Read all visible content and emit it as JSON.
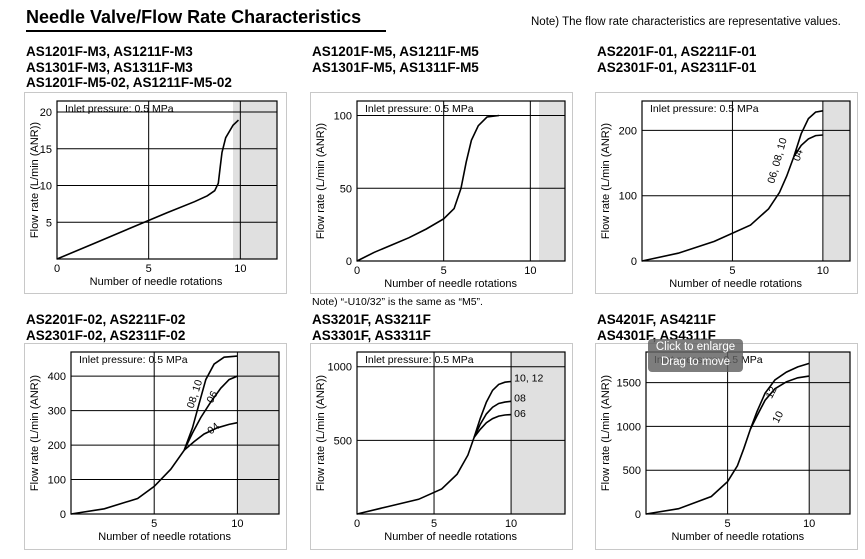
{
  "page": {
    "title": "Needle Valve/Flow Rate Characteristics",
    "note": "Note) The flow rate characteristics are representative values.",
    "middle_note": "Note) “-U10/32” is the same as “M5”."
  },
  "tooltip": {
    "line1": "Click to enlarge",
    "line2": "Drag to move"
  },
  "colors": {
    "grid_shade": "#e0e0e0",
    "plot_white": "#ffffff",
    "line": "#000000",
    "tooltip_bg": "#606060"
  },
  "chart_data": [
    {
      "type": "line",
      "heading": [
        "AS1201F-M3, AS1211F-M3",
        "AS1301F-M3, AS1311F-M3",
        "AS1201F-M5-02, AS1211F-M5-02"
      ],
      "inlet_pressure": "Inlet pressure: 0.5 MPa",
      "xlabel": "Number of needle rotations",
      "ylabel": "Flow rate (L/min (ANR))",
      "xlim": [
        0,
        12
      ],
      "ylim": [
        0,
        21.5
      ],
      "xticks": [
        0,
        5,
        10
      ],
      "yticks": [
        5,
        10,
        15,
        20
      ],
      "shade_from_x": 9.6,
      "series": [
        {
          "label": "",
          "points": [
            [
              0,
              0
            ],
            [
              2,
              2.1
            ],
            [
              4,
              4.2
            ],
            [
              6,
              6.3
            ],
            [
              7.5,
              7.8
            ],
            [
              8.2,
              8.6
            ],
            [
              8.6,
              9.3
            ],
            [
              8.8,
              10.3
            ],
            [
              8.9,
              12.5
            ],
            [
              9.0,
              14.5
            ],
            [
              9.2,
              16.5
            ],
            [
              9.6,
              18.2
            ],
            [
              9.9,
              18.9
            ]
          ]
        }
      ]
    },
    {
      "type": "line",
      "heading": [
        "AS1201F-M5, AS1211F-M5",
        "AS1301F-M5, AS1311F-M5"
      ],
      "inlet_pressure": "Inlet pressure: 0.5 MPa",
      "xlabel": "Number of needle rotations",
      "ylabel": "Flow rate (L/min (ANR))",
      "xlim": [
        0,
        12
      ],
      "ylim": [
        0,
        110
      ],
      "xticks": [
        0,
        5,
        10
      ],
      "yticks": [
        0,
        50,
        100
      ],
      "shade_from_x": 10.5,
      "series": [
        {
          "label": "",
          "points": [
            [
              0,
              0
            ],
            [
              1,
              6
            ],
            [
              2,
              11
            ],
            [
              3,
              16
            ],
            [
              4,
              22
            ],
            [
              5,
              29
            ],
            [
              5.6,
              36
            ],
            [
              6.0,
              50
            ],
            [
              6.3,
              68
            ],
            [
              6.6,
              83
            ],
            [
              7.0,
              93
            ],
            [
              7.5,
              99
            ],
            [
              8.2,
              100
            ]
          ]
        }
      ]
    },
    {
      "type": "line",
      "heading": [
        "AS2201F-01, AS2211F-01",
        "AS2301F-01, AS2311F-01"
      ],
      "inlet_pressure": "Inlet pressure: 0.5 MPa",
      "xlabel": "Number of needle rotations",
      "ylabel": "Flow rate (L/min (ANR))",
      "xlim": [
        0,
        11.5
      ],
      "ylim": [
        0,
        245
      ],
      "xticks": [
        5,
        10
      ],
      "yticks": [
        0,
        100,
        200
      ],
      "shade_from_x": 10.0,
      "series": [
        {
          "label": "06, 08, 10",
          "points": [
            [
              0,
              0
            ],
            [
              2,
              12
            ],
            [
              4,
              30
            ],
            [
              6,
              55
            ],
            [
              7,
              80
            ],
            [
              7.6,
              105
            ],
            [
              8.0,
              130
            ],
            [
              8.4,
              160
            ],
            [
              8.8,
              195
            ],
            [
              9.2,
              218
            ],
            [
              9.6,
              228
            ],
            [
              10,
              230
            ]
          ]
        },
        {
          "label": "04",
          "points": [
            [
              8.4,
              160
            ],
            [
              8.8,
              177
            ],
            [
              9.2,
              187
            ],
            [
              9.6,
              192
            ],
            [
              10,
              193
            ]
          ]
        }
      ]
    },
    {
      "type": "line",
      "heading": [
        "AS2201F-02, AS2211F-02",
        "AS2301F-02, AS2311F-02"
      ],
      "inlet_pressure": "Inlet pressure: 0.5 MPa",
      "xlabel": "Number of needle rotations",
      "ylabel": "Flow rate (L/min (ANR))",
      "xlim": [
        0,
        12.5
      ],
      "ylim": [
        0,
        470
      ],
      "xticks": [
        5,
        10
      ],
      "yticks": [
        0,
        100,
        200,
        300,
        400
      ],
      "shade_from_x": 10.0,
      "series": [
        {
          "label": "08, 10",
          "points": [
            [
              0,
              0
            ],
            [
              2,
              15
            ],
            [
              4,
              45
            ],
            [
              5,
              80
            ],
            [
              6,
              130
            ],
            [
              6.8,
              185
            ],
            [
              7.3,
              250
            ],
            [
              7.7,
              320
            ],
            [
              8.1,
              390
            ],
            [
              8.6,
              435
            ],
            [
              9.2,
              455
            ],
            [
              10,
              458
            ]
          ]
        },
        {
          "label": "06",
          "points": [
            [
              6.8,
              185
            ],
            [
              7.3,
              235
            ],
            [
              7.8,
              280
            ],
            [
              8.4,
              325
            ],
            [
              9.0,
              365
            ],
            [
              9.5,
              390
            ],
            [
              10,
              400
            ]
          ]
        },
        {
          "label": "04",
          "points": [
            [
              6.8,
              185
            ],
            [
              7.4,
              210
            ],
            [
              8.0,
              232
            ],
            [
              8.8,
              250
            ],
            [
              9.5,
              260
            ],
            [
              10,
              265
            ]
          ]
        }
      ]
    },
    {
      "type": "line",
      "heading": [
        "AS3201F, AS3211F",
        "AS3301F, AS3311F"
      ],
      "inlet_pressure": "Inlet pressure: 0.5 MPa",
      "xlabel": "Number of needle rotations",
      "ylabel": "Flow rate (L/min (ANR))",
      "xlim": [
        0,
        13.5
      ],
      "ylim": [
        0,
        1100
      ],
      "xticks": [
        0,
        5,
        10
      ],
      "yticks": [
        500,
        1000
      ],
      "shade_from_x": 10.0,
      "series": [
        {
          "label": "10, 12",
          "points": [
            [
              0,
              0
            ],
            [
              2,
              50
            ],
            [
              4,
              100
            ],
            [
              5.5,
              170
            ],
            [
              6.5,
              270
            ],
            [
              7.2,
              400
            ],
            [
              7.6,
              520
            ],
            [
              8.0,
              650
            ],
            [
              8.4,
              760
            ],
            [
              8.8,
              840
            ],
            [
              9.2,
              880
            ],
            [
              9.6,
              895
            ],
            [
              10,
              900
            ]
          ]
        },
        {
          "label": "08",
          "points": [
            [
              7.6,
              520
            ],
            [
              8.0,
              610
            ],
            [
              8.4,
              680
            ],
            [
              8.8,
              725
            ],
            [
              9.2,
              750
            ],
            [
              9.6,
              760
            ],
            [
              10,
              765
            ]
          ]
        },
        {
          "label": "06",
          "points": [
            [
              7.6,
              520
            ],
            [
              8.0,
              575
            ],
            [
              8.4,
              620
            ],
            [
              8.8,
              648
            ],
            [
              9.2,
              665
            ],
            [
              9.6,
              672
            ],
            [
              10,
              675
            ]
          ]
        }
      ]
    },
    {
      "type": "line",
      "heading": [
        "AS4201F, AS4211F",
        "AS4301F, AS4311F"
      ],
      "inlet_pressure": "Inlet pressure: 0.5 MPa",
      "xlabel": "Number of needle rotations",
      "ylabel": "Flow rate (L/min (ANR))",
      "xlim": [
        0,
        12.5
      ],
      "ylim": [
        0,
        1850
      ],
      "xticks": [
        5,
        10
      ],
      "yticks": [
        0,
        500,
        1000,
        1500
      ],
      "shade_from_x": 10.0,
      "series": [
        {
          "label": "12",
          "points": [
            [
              0,
              0
            ],
            [
              2,
              60
            ],
            [
              4,
              200
            ],
            [
              5,
              370
            ],
            [
              5.6,
              550
            ],
            [
              6.0,
              750
            ],
            [
              6.4,
              970
            ],
            [
              6.8,
              1170
            ],
            [
              7.3,
              1380
            ],
            [
              7.9,
              1530
            ],
            [
              8.6,
              1620
            ],
            [
              9.3,
              1680
            ],
            [
              10,
              1720
            ]
          ]
        },
        {
          "label": "10",
          "points": [
            [
              6.4,
              970
            ],
            [
              6.8,
              1120
            ],
            [
              7.3,
              1300
            ],
            [
              7.9,
              1430
            ],
            [
              8.6,
              1510
            ],
            [
              9.3,
              1555
            ],
            [
              10,
              1575
            ]
          ]
        }
      ]
    }
  ]
}
